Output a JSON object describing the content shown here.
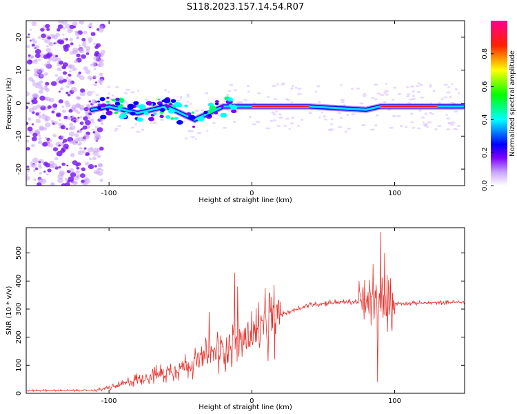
{
  "figure": {
    "title": "S118.2023.157.14.54.R07"
  },
  "chart_data": [
    {
      "type": "heatmap",
      "xlabel": "Height of straight line (km)",
      "ylabel": "Frequency (Hz)",
      "xlim": [
        -158,
        149
      ],
      "ylim": [
        -25,
        25
      ],
      "x_ticks": [
        -100,
        0,
        100
      ],
      "y_ticks": [
        -20,
        -10,
        0,
        10,
        20
      ],
      "colorbar": {
        "label": "Normalized spectral amplitude",
        "range": [
          0,
          1
        ],
        "ticks": [
          "0.0",
          "0.2",
          "0.4",
          "0.6",
          "0.8"
        ],
        "colors": [
          "#ffffff",
          "#8000ff",
          "#0000ff",
          "#00ffff",
          "#00ff00",
          "#ffff00",
          "#ff0000",
          "#ff0080"
        ]
      },
      "band_centerline": [
        {
          "x": -112,
          "y": -2
        },
        {
          "x": -100,
          "y": -1
        },
        {
          "x": -80,
          "y": -3
        },
        {
          "x": -60,
          "y": -1
        },
        {
          "x": -40,
          "y": -5
        },
        {
          "x": -20,
          "y": -1
        },
        {
          "x": 0,
          "y": -1
        },
        {
          "x": 40,
          "y": -1
        },
        {
          "x": 60,
          "y": -1.5
        },
        {
          "x": 80,
          "y": -2
        },
        {
          "x": 90,
          "y": -1
        },
        {
          "x": 149,
          "y": -1
        }
      ],
      "noise_region_x": [
        -158,
        -110
      ],
      "strong_segments_x": [
        [
          0,
          40
        ],
        [
          90,
          130
        ]
      ],
      "grid": false
    },
    {
      "type": "line",
      "xlabel": "Height of straight line (km)",
      "ylabel": "SNR (10 * v/v)",
      "xlim": [
        -158,
        149
      ],
      "ylim": [
        0,
        590
      ],
      "x_ticks": [
        -100,
        0,
        100
      ],
      "y_ticks": [
        0,
        100,
        200,
        300,
        400,
        500
      ],
      "color": "#e8302a",
      "trend": [
        {
          "x": -158,
          "y": 10
        },
        {
          "x": -110,
          "y": 10
        },
        {
          "x": -95,
          "y": 25
        },
        {
          "x": -80,
          "y": 50
        },
        {
          "x": -60,
          "y": 75
        },
        {
          "x": -40,
          "y": 110
        },
        {
          "x": -20,
          "y": 160
        },
        {
          "x": 0,
          "y": 210
        },
        {
          "x": 20,
          "y": 280
        },
        {
          "x": 40,
          "y": 315
        },
        {
          "x": 60,
          "y": 325
        },
        {
          "x": 75,
          "y": 325
        },
        {
          "x": 90,
          "y": 320
        },
        {
          "x": 105,
          "y": 320
        },
        {
          "x": 149,
          "y": 325
        }
      ],
      "spikes": [
        {
          "x": -12,
          "y": 430
        },
        {
          "x": -10,
          "y": 380
        },
        {
          "x": 90,
          "y": 575
        },
        {
          "x": 93,
          "y": 500
        },
        {
          "x": 88,
          "y": 40
        },
        {
          "x": 85,
          "y": 460
        },
        {
          "x": 97,
          "y": 410
        },
        {
          "x": 75,
          "y": 400
        },
        {
          "x": -30,
          "y": 290
        }
      ],
      "grid": false
    }
  ]
}
